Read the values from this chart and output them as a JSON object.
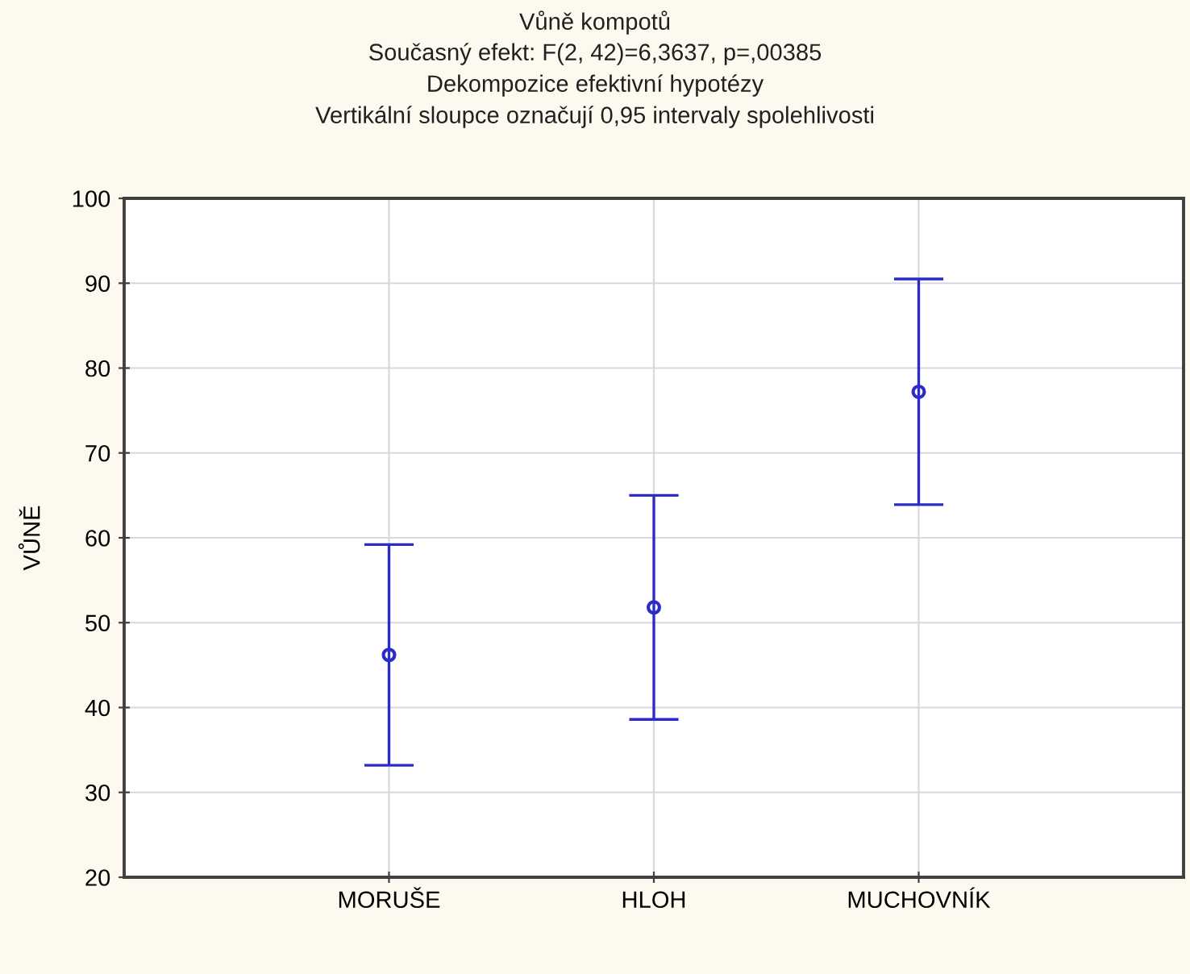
{
  "chart_data": {
    "type": "scatter",
    "title": "Vůně kompotů",
    "subtitle": "Současný efekt: F(2, 42)=6,3637, p=,00385",
    "annotations": [
      "Dekompozice efektivní hypotézy",
      "Vertikální sloupce označují 0,95 intervaly spolehlivosti"
    ],
    "ylabel": "VŮNĚ",
    "categories": [
      "MORUŠE",
      "HLOH",
      "MUCHOVNÍK"
    ],
    "values": [
      46.2,
      51.8,
      77.2
    ],
    "errors": [
      13.0,
      13.2,
      13.3
    ],
    "color": "#2b2bc8",
    "marker": "circle",
    "ylim": [
      20,
      100
    ],
    "yticks": [
      20,
      30,
      40,
      50,
      60,
      70,
      80,
      90,
      100
    ],
    "grid": true,
    "legend": false
  }
}
